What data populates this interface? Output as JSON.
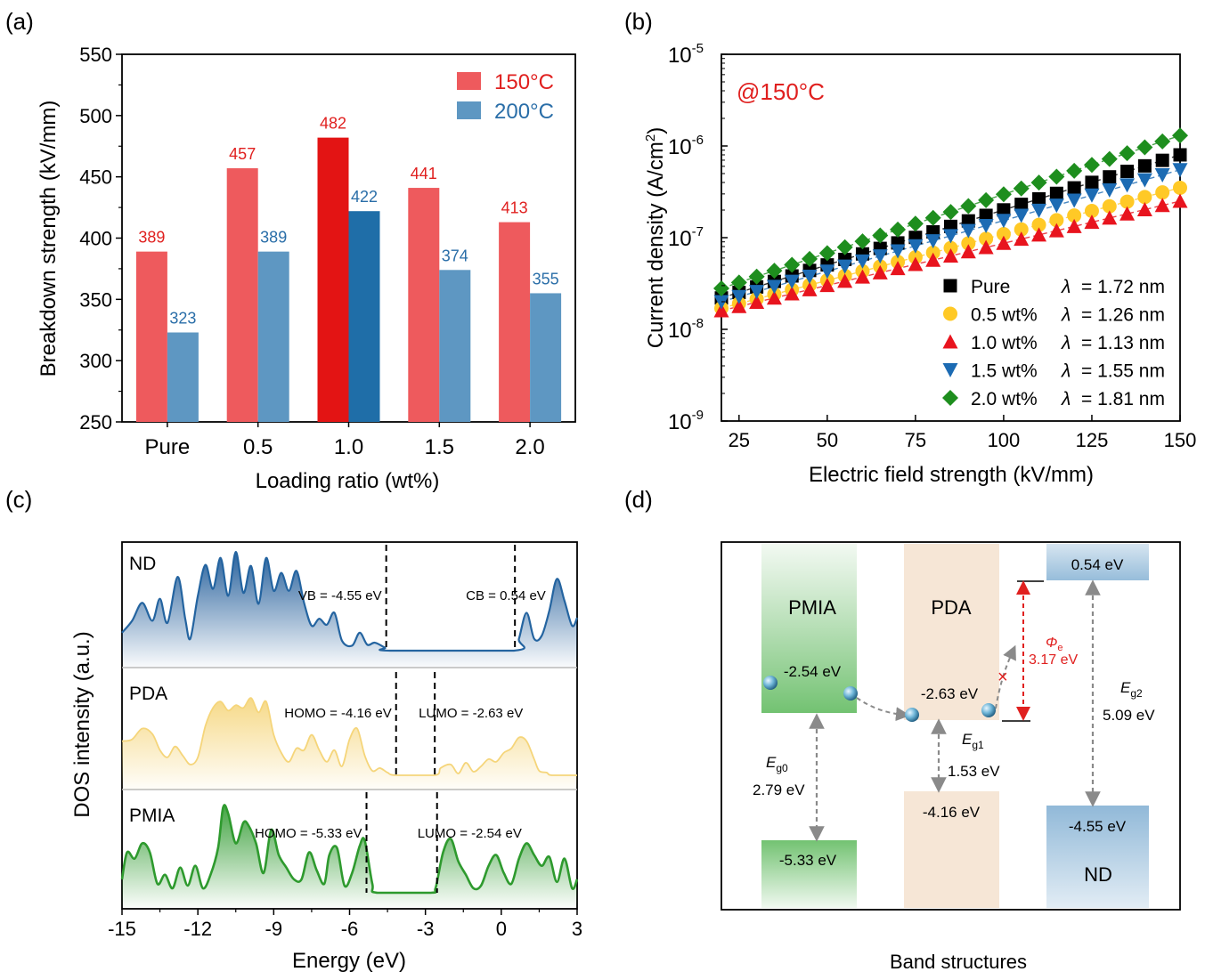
{
  "panel_labels": [
    "(a)",
    "(b)",
    "(c)",
    "(d)"
  ],
  "colors": {
    "c150": "#EE5A5D",
    "c150_hi": "#E31414",
    "c200": "#5E97C2",
    "c200_hi": "#1F6EA8",
    "red_text": "#E0201F",
    "blue_text": "#2A6EA8",
    "black": "#000000",
    "yellow": "#FFC926",
    "red": "#E8141E",
    "blue": "#1C6BB3",
    "green": "#1E8E1E",
    "nd": "#2464A0",
    "pda": "#F5D57A",
    "pmia": "#2E9A2E"
  },
  "chart_data": [
    {
      "id": "a",
      "type": "bar",
      "xlabel": "Loading ratio (wt%)",
      "ylabel": "Breakdown strength (kV/mm)",
      "ylim": [
        250,
        550
      ],
      "yticks": [
        "250",
        "300",
        "350",
        "400",
        "450",
        "500",
        "550"
      ],
      "categories": [
        "Pure",
        "0.5",
        "1.0",
        "1.5",
        "2.0"
      ],
      "highlight_index": 2,
      "series": [
        {
          "name": "150°C",
          "values": [
            389,
            457,
            482,
            441,
            413
          ],
          "labels": [
            "389",
            "457",
            "482",
            "441",
            "413"
          ]
        },
        {
          "name": "200°C",
          "values": [
            323,
            389,
            422,
            374,
            355
          ],
          "labels": [
            "323",
            "389",
            "422",
            "374",
            "355"
          ]
        }
      ],
      "legend": "top-right"
    },
    {
      "id": "b",
      "type": "scatter",
      "xlabel": "Electric field strength (kV/mm)",
      "ylabel_main": "Current density (A/cm",
      "ylabel_sup": "2",
      "ylabel_end": ")",
      "annotation": "@150°C",
      "xlim": [
        20,
        150
      ],
      "xticks": [
        "25",
        "50",
        "75",
        "100",
        "125",
        "150"
      ],
      "yscale": "log",
      "ylim_exp": [
        -9,
        -5
      ],
      "ytick_base": "10",
      "ytick_exps": [
        "-9",
        "-8",
        "-7",
        "-6",
        "-5"
      ],
      "lambda_symbol": "λ",
      "x": [
        20,
        25,
        30,
        35,
        40,
        45,
        50,
        55,
        60,
        65,
        70,
        75,
        80,
        85,
        90,
        95,
        100,
        105,
        110,
        115,
        120,
        125,
        130,
        135,
        140,
        145,
        150
      ],
      "series": [
        {
          "name": "Pure",
          "lambda": "= 1.72 nm",
          "marker": "square",
          "y_start": 2.2e-08,
          "y_end": 8e-07
        },
        {
          "name": "0.5 wt%",
          "lambda": "= 1.26 nm",
          "marker": "circle",
          "y_start": 1.7e-08,
          "y_end": 3.5e-07
        },
        {
          "name": "1.0 wt%",
          "lambda": "= 1.13 nm",
          "marker": "triangle-up",
          "y_start": 1.6e-08,
          "y_end": 2.5e-07
        },
        {
          "name": "1.5 wt%",
          "lambda": "= 1.55 nm",
          "marker": "triangle-down",
          "y_start": 2e-08,
          "y_end": 5.5e-07
        },
        {
          "name": "2.0 wt%",
          "lambda": "= 1.81 nm",
          "marker": "diamond",
          "y_start": 2.8e-08,
          "y_end": 1.3e-06
        }
      ],
      "legend": "bottom-right"
    },
    {
      "id": "c",
      "type": "area",
      "xlabel": "Energy (eV)",
      "ylabel": "DOS intensity (a.u.)",
      "xlim": [
        -15,
        3
      ],
      "xticks": [
        "-15",
        "-12",
        "-9",
        "-6",
        "-3",
        "0",
        "3"
      ],
      "series": [
        {
          "name": "ND",
          "left_edge": -4.55,
          "right_edge": 0.54,
          "left_label": "VB = -4.55 eV",
          "right_label": "CB = 0.54 eV",
          "x": [
            -15,
            -14.6,
            -14.2,
            -13.8,
            -13.5,
            -13.2,
            -12.8,
            -12.5,
            -12.3,
            -12,
            -11.7,
            -11.4,
            -11.1,
            -10.8,
            -10.5,
            -10.2,
            -9.9,
            -9.6,
            -9.3,
            -9.0,
            -8.7,
            -8.4,
            -8.1,
            -7.8,
            -7.5,
            -7.2,
            -6.9,
            -6.6,
            -6.3,
            -5.9,
            -5.6,
            -5.3,
            -5.0,
            -4.6,
            -4.4,
            0.5,
            0.7,
            1.0,
            1.3,
            1.6,
            1.9,
            2.2,
            2.5,
            2.8,
            3.0
          ],
          "y": [
            0.18,
            0.3,
            0.48,
            0.3,
            0.52,
            0.28,
            0.74,
            0.32,
            0.12,
            0.55,
            0.86,
            0.62,
            0.93,
            0.55,
            0.99,
            0.58,
            0.85,
            0.47,
            0.93,
            0.6,
            0.78,
            0.6,
            0.8,
            0.48,
            0.25,
            0.32,
            0.26,
            0.38,
            0.1,
            0.05,
            0.18,
            0.06,
            0.08,
            0.03,
            0.0,
            0.0,
            0.12,
            0.38,
            0.12,
            0.15,
            0.4,
            0.72,
            0.5,
            0.25,
            0.33
          ]
        },
        {
          "name": "PDA",
          "left_edge": -4.16,
          "right_edge": -2.63,
          "left_label": "HOMO = -4.16 eV",
          "right_label": "LUMO = -2.63 eV",
          "x": [
            -15,
            -14.6,
            -14.2,
            -13.8,
            -13.5,
            -13.2,
            -12.9,
            -12.6,
            -12.3,
            -12.0,
            -11.7,
            -11.4,
            -11.1,
            -10.8,
            -10.5,
            -10.2,
            -9.9,
            -9.6,
            -9.3,
            -9.0,
            -8.7,
            -8.4,
            -8.1,
            -7.8,
            -7.5,
            -7.2,
            -6.9,
            -6.6,
            -6.3,
            -6.0,
            -5.7,
            -5.4,
            -5.1,
            -4.8,
            -4.5,
            -4.16,
            -2.63,
            -2.4,
            -2.0,
            -1.7,
            -1.4,
            -1.1,
            -0.8,
            -0.5,
            -0.2,
            0.1,
            0.4,
            0.7,
            1.0,
            1.3,
            1.5,
            1.8,
            2.0,
            3.0
          ],
          "y": [
            0.38,
            0.4,
            0.52,
            0.46,
            0.28,
            0.2,
            0.32,
            0.22,
            0.12,
            0.2,
            0.55,
            0.75,
            0.82,
            0.72,
            0.78,
            0.75,
            0.86,
            0.7,
            0.82,
            0.45,
            0.25,
            0.15,
            0.3,
            0.28,
            0.45,
            0.28,
            0.15,
            0.28,
            0.1,
            0.4,
            0.52,
            0.22,
            0.05,
            0.08,
            0.03,
            0.0,
            0.0,
            0.08,
            0.12,
            0.02,
            0.14,
            0.04,
            0.1,
            0.18,
            0.15,
            0.25,
            0.3,
            0.42,
            0.38,
            0.18,
            0.05,
            0.03,
            0.0,
            0.0
          ]
        },
        {
          "name": "PMIA",
          "left_edge": -5.33,
          "right_edge": -2.54,
          "left_label": "HOMO = -5.33 eV",
          "right_label": "LUMO = -2.54 eV",
          "x": [
            -15,
            -14.8,
            -14.5,
            -14.2,
            -13.9,
            -13.6,
            -13.3,
            -13.0,
            -12.7,
            -12.4,
            -12.1,
            -11.8,
            -11.5,
            -11.2,
            -11.0,
            -10.8,
            -10.5,
            -10.2,
            -10.0,
            -9.7,
            -9.4,
            -9.1,
            -8.8,
            -8.5,
            -8.2,
            -7.9,
            -7.6,
            -7.3,
            -7.0,
            -6.8,
            -6.5,
            -6.2,
            -5.9,
            -5.6,
            -5.4,
            -5.1,
            -4.9,
            -2.8,
            -2.6,
            -2.3,
            -2.0,
            -1.7,
            -1.4,
            -1.1,
            -0.8,
            -0.5,
            -0.2,
            0.1,
            0.4,
            0.7,
            1.0,
            1.3,
            1.6,
            1.9,
            2.2,
            2.5,
            2.8,
            3.0
          ],
          "y": [
            0.15,
            0.45,
            0.38,
            0.55,
            0.45,
            0.1,
            0.2,
            0.05,
            0.28,
            0.08,
            0.3,
            0.05,
            0.2,
            0.5,
            0.95,
            0.88,
            0.55,
            0.78,
            0.75,
            0.55,
            0.22,
            0.7,
            0.42,
            0.28,
            0.15,
            0.15,
            0.45,
            0.25,
            0.1,
            0.42,
            0.5,
            0.08,
            0.22,
            0.52,
            0.58,
            0.1,
            0.0,
            0.0,
            0.05,
            0.45,
            0.6,
            0.35,
            0.2,
            0.05,
            0.08,
            0.3,
            0.42,
            0.22,
            0.1,
            0.38,
            0.55,
            0.42,
            0.3,
            0.4,
            0.12,
            0.38,
            0.05,
            0.15
          ]
        }
      ]
    }
  ],
  "band": {
    "title": "Band structures",
    "pmia_name": "PMIA",
    "pmia_lumo": "-2.54 eV",
    "pmia_homo": "-5.33 eV",
    "pda_name": "PDA",
    "pda_lumo": "-2.63 eV",
    "pda_homo": "-4.16 eV",
    "nd_name": "ND",
    "nd_cb": "0.54 eV",
    "nd_vb": "-4.55 eV",
    "eg0_main": "E",
    "eg0_sub": "g0",
    "eg0_val": "2.79 eV",
    "eg1_main": "E",
    "eg1_sub": "g1",
    "eg1_val": "1.53 eV",
    "eg2_main": "E",
    "eg2_sub": "g2",
    "eg2_val": "5.09 eV",
    "phi_main": "Φ",
    "phi_sub": "e",
    "phi_val": "3.17 eV",
    "blocked": "×"
  }
}
